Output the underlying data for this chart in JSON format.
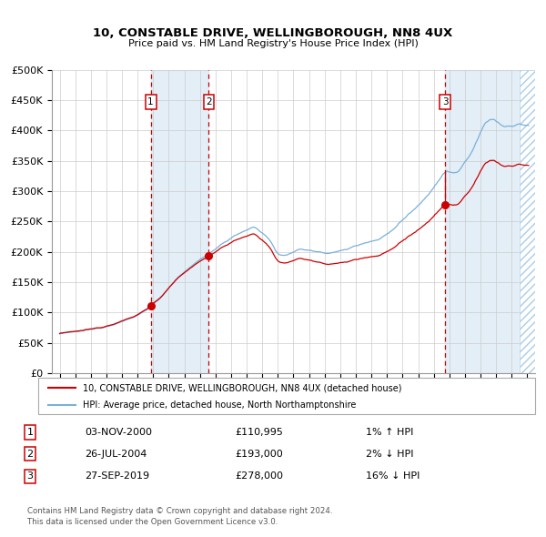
{
  "title1": "10, CONSTABLE DRIVE, WELLINGBOROUGH, NN8 4UX",
  "title2": "Price paid vs. HM Land Registry's House Price Index (HPI)",
  "background_color": "#ffffff",
  "grid_color": "#cccccc",
  "hpi_line_color": "#7ab0d8",
  "price_line_color": "#cc0000",
  "sale_marker_color": "#cc0000",
  "transactions": [
    {
      "num": 1,
      "date_label": "03-NOV-2000",
      "date_x": 2000.84,
      "price": 110995,
      "hpi_note": "1% ↑ HPI"
    },
    {
      "num": 2,
      "date_label": "26-JUL-2004",
      "date_x": 2004.57,
      "price": 193000,
      "hpi_note": "2% ↓ HPI"
    },
    {
      "num": 3,
      "date_label": "27-SEP-2019",
      "date_x": 2019.74,
      "price": 278000,
      "hpi_note": "16% ↓ HPI"
    }
  ],
  "legend_line1": "10, CONSTABLE DRIVE, WELLINGBOROUGH, NN8 4UX (detached house)",
  "legend_line2": "HPI: Average price, detached house, North Northamptonshire",
  "footer1": "Contains HM Land Registry data © Crown copyright and database right 2024.",
  "footer2": "This data is licensed under the Open Government Licence v3.0.",
  "ylim": [
    0,
    500000
  ],
  "yticks": [
    0,
    50000,
    100000,
    150000,
    200000,
    250000,
    300000,
    350000,
    400000,
    450000,
    500000
  ],
  "xlim": [
    1994.5,
    2025.5
  ],
  "xticks": [
    1995,
    1996,
    1997,
    1998,
    1999,
    2000,
    2001,
    2002,
    2003,
    2004,
    2005,
    2006,
    2007,
    2008,
    2009,
    2010,
    2011,
    2012,
    2013,
    2014,
    2015,
    2016,
    2017,
    2018,
    2019,
    2020,
    2021,
    2022,
    2023,
    2024,
    2025
  ],
  "table_rows": [
    [
      "1",
      "03-NOV-2000",
      "£110,995",
      "1% ↑ HPI"
    ],
    [
      "2",
      "26-JUL-2004",
      "£193,000",
      "2% ↓ HPI"
    ],
    [
      "3",
      "27-SEP-2019",
      "£278,000",
      "16% ↓ HPI"
    ]
  ]
}
